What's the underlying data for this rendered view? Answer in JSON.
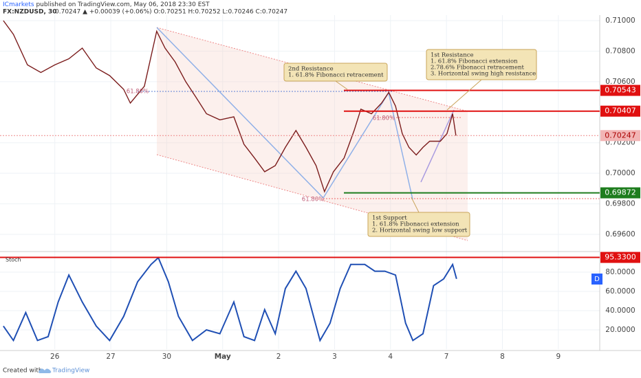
{
  "header": {
    "publisher": "ICmarkets",
    "published": "published on TradingView.com, May 06, 2018 23:30 EST",
    "symbol": "FX:NZDUSD, 30",
    "quote": "0.70247 ▲ +0.00039 (+0.06%) O:0.70251 H:0.70252 L:0.70246 C:0.70247"
  },
  "chart_data": [
    {
      "type": "line",
      "color": "#7b1c1c",
      "x": [
        -0.92,
        -0.74,
        -0.49,
        -0.25,
        0,
        0.25,
        0.49,
        0.74,
        0.98,
        1.23,
        1.35,
        1.6,
        1.82,
        1.97,
        2.15,
        2.34,
        2.52,
        2.71,
        2.95,
        3.2,
        3.38,
        3.57,
        3.75,
        3.94,
        4.12,
        4.31,
        4.49,
        4.67,
        4.82,
        4.98,
        5.17,
        5.35,
        5.47,
        5.66,
        5.84,
        5.97,
        6.09,
        6.21,
        6.33,
        6.46,
        6.58,
        6.7,
        6.89,
        7.01,
        7.11,
        7.17
      ],
      "values": [
        0.71,
        0.7091,
        0.7071,
        0.7066,
        0.7071,
        0.7075,
        0.7082,
        0.7069,
        0.7064,
        0.7055,
        0.7046,
        0.7057,
        0.7093,
        0.7082,
        0.7073,
        0.706,
        0.705,
        0.7039,
        0.7035,
        0.7037,
        0.7019,
        0.701,
        0.7001,
        0.7005,
        0.7017,
        0.7028,
        0.7017,
        0.7005,
        0.6988,
        0.7001,
        0.701,
        0.7028,
        0.7042,
        0.7039,
        0.7046,
        0.7053,
        0.7044,
        0.7026,
        0.7017,
        0.7012,
        0.7017,
        0.7021,
        0.7021,
        0.7026,
        0.7039,
        0.70247
      ],
      "xlim": [
        -0.98,
        9.74
      ],
      "xticks": [
        {
          "value": 0,
          "label": "26"
        },
        {
          "value": 1,
          "label": "27"
        },
        {
          "value": 2,
          "label": "30"
        },
        {
          "value": 3,
          "label": "May"
        },
        {
          "value": 4,
          "label": "2"
        },
        {
          "value": 5,
          "label": "3"
        },
        {
          "value": 6,
          "label": "4"
        },
        {
          "value": 7,
          "label": "7"
        },
        {
          "value": 8,
          "label": "8"
        },
        {
          "value": 9,
          "label": "9"
        }
      ],
      "ylim": [
        0.69492,
        0.71036
      ],
      "yticks": [
        {
          "value": 0.71,
          "label": "0.71000"
        },
        {
          "value": 0.708,
          "label": "0.70800"
        },
        {
          "value": 0.706,
          "label": "0.70600"
        },
        {
          "value": 0.702,
          "label": "0.70200"
        },
        {
          "value": 0.7,
          "label": "0.70000"
        },
        {
          "value": 0.698,
          "label": "0.69800"
        },
        {
          "value": 0.696,
          "label": "0.69600"
        }
      ],
      "grid": true,
      "levels": [
        {
          "value": 0.70543,
          "color": "#e01010"
        },
        {
          "value": 0.70407,
          "color": "#e01010"
        },
        {
          "value": 0.69872,
          "color": "#1e7d1e"
        },
        {
          "value": 0.70247,
          "color": "#f2b5b5"
        }
      ],
      "annotations": [
        {
          "lines": [
            "2nd Resistance",
            "1. 61.8% Fibonacci retracement"
          ]
        },
        {
          "lines": [
            "1st Resistance",
            "1. 61.8% Fibonacci extension",
            "2.78.6% Fibonacci retracement",
            "3. Horizontal swing high resistance"
          ]
        },
        {
          "lines": [
            "1st Support",
            "1. 61.8% Fibonacci extension",
            "2. Horizontal swing low support"
          ]
        }
      ],
      "fib_labels": [
        "61.80%",
        "61.80%",
        "61.80%"
      ]
    },
    {
      "type": "line",
      "name": "Stoch",
      "color": "#1f4fb4",
      "x": [
        -0.92,
        -0.74,
        -0.52,
        -0.31,
        -0.12,
        0.06,
        0.25,
        0.49,
        0.74,
        0.98,
        1.23,
        1.48,
        1.72,
        1.85,
        2.03,
        2.21,
        2.46,
        2.71,
        2.95,
        3.2,
        3.38,
        3.57,
        3.75,
        3.94,
        4.12,
        4.31,
        4.49,
        4.74,
        4.92,
        5.1,
        5.29,
        5.54,
        5.72,
        5.9,
        6.09,
        6.27,
        6.4,
        6.58,
        6.77,
        6.95,
        7.11,
        7.18
      ],
      "values": [
        24,
        9,
        38,
        9,
        13,
        49,
        77,
        49,
        24,
        9,
        34,
        70,
        88,
        95,
        70,
        34,
        9,
        20,
        16,
        49,
        13,
        9,
        41,
        16,
        63,
        81,
        63,
        9,
        27,
        63,
        88,
        88,
        81,
        81,
        77,
        27,
        9,
        16,
        66,
        73,
        88,
        73
      ],
      "ylim": [
        0,
        100
      ],
      "yticks": [
        {
          "value": 80,
          "label": "80.0000"
        },
        {
          "value": 60,
          "label": "60.0000"
        },
        {
          "value": 40,
          "label": "40.0000"
        },
        {
          "value": 20,
          "label": "20.0000"
        }
      ],
      "levels": [
        {
          "value": 95.33,
          "label": "95.3300",
          "color": "#e01010"
        }
      ],
      "button": "D"
    }
  ],
  "footer": {
    "created": "Created with",
    "brand": "TradingView"
  }
}
